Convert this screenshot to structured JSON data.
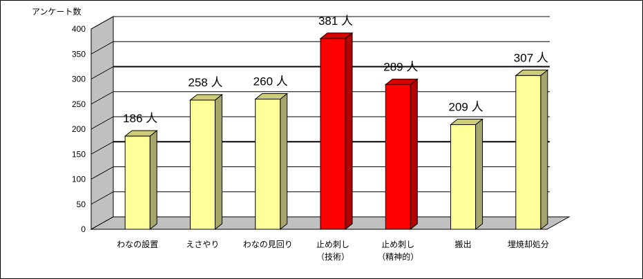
{
  "chart_data": {
    "type": "bar",
    "ylabel": "アンケート数",
    "ylim": [
      0,
      400
    ],
    "yticks": [
      0,
      50,
      100,
      150,
      200,
      250,
      300,
      350,
      400
    ],
    "categories": [
      {
        "line1": "わなの設置",
        "line2": ""
      },
      {
        "line1": "えさやり",
        "line2": ""
      },
      {
        "line1": "わなの見回り",
        "line2": ""
      },
      {
        "line1": "止め刺し",
        "line2": "（技術）"
      },
      {
        "line1": "止め刺し",
        "line2": "（精神的）"
      },
      {
        "line1": "搬出",
        "line2": ""
      },
      {
        "line1": "埋焼却処分",
        "line2": ""
      }
    ],
    "values": [
      186,
      258,
      260,
      381,
      289,
      209,
      307
    ],
    "data_labels": [
      "186 人",
      "258 人",
      "260 人",
      "381 人",
      "289 人",
      "209 人",
      "307 人"
    ],
    "highlight": [
      false,
      false,
      false,
      true,
      true,
      false,
      false
    ],
    "grid": true,
    "bold_gridlines": [
      150,
      300
    ],
    "colors": {
      "bar_front": "#ffff99",
      "bar_side": "#a6a66b",
      "bar_top": "#cccc7a",
      "highlight_front": "#ff0000",
      "highlight_side": "#b30000",
      "highlight_top": "#d90000",
      "wall": "#c0c0c0",
      "floor": "#c0c0c0"
    }
  }
}
